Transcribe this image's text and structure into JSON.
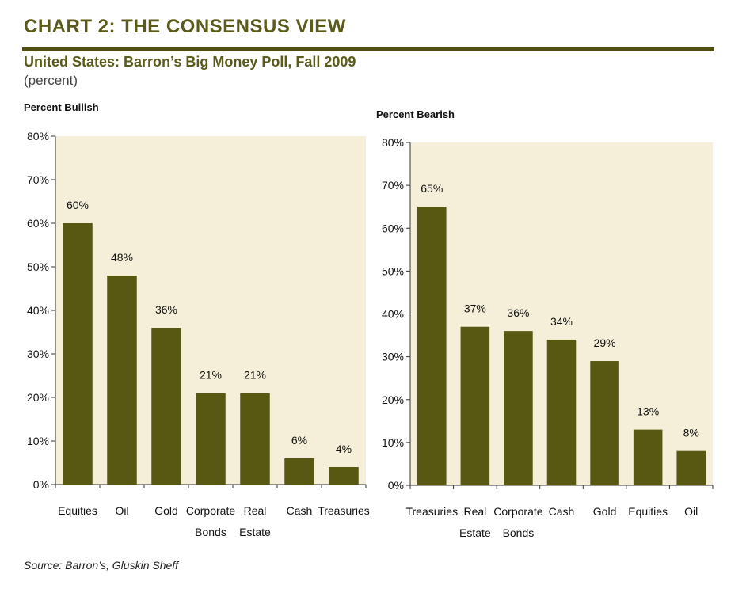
{
  "header": {
    "title": "CHART 2: THE CONSENSUS VIEW",
    "subtitle": "United States: Barron’s Big Money Poll, Fall 2009",
    "units": "(percent)"
  },
  "footer": {
    "source": "Source: Barron’s, Gluskin Sheff"
  },
  "colors": {
    "bar": "#585812",
    "plot_bg": "#f5efd9",
    "title": "#5a5a1a",
    "rule": "#4f4f12"
  },
  "chart_data": [
    {
      "type": "bar",
      "title": "Percent Bullish",
      "categories": [
        [
          "Equities"
        ],
        [
          "Oil"
        ],
        [
          "Gold"
        ],
        [
          "Corporate",
          "Bonds"
        ],
        [
          "Real",
          "Estate"
        ],
        [
          "Cash"
        ],
        [
          "Treasuries"
        ]
      ],
      "values": [
        60,
        48,
        36,
        21,
        21,
        6,
        4
      ],
      "data_labels": [
        "60%",
        "48%",
        "36%",
        "21%",
        "21%",
        "6%",
        "4%"
      ],
      "ylim": [
        0,
        80
      ],
      "yticks": [
        "0%",
        "10%",
        "20%",
        "30%",
        "40%",
        "50%",
        "60%",
        "70%",
        "80%"
      ],
      "xlabel": "",
      "ylabel": ""
    },
    {
      "type": "bar",
      "title": "Percent Bearish",
      "categories": [
        [
          "Treasuries"
        ],
        [
          "Real",
          "Estate"
        ],
        [
          "Corporate",
          "Bonds"
        ],
        [
          "Cash"
        ],
        [
          "Gold"
        ],
        [
          "Equities"
        ],
        [
          "Oil"
        ]
      ],
      "values": [
        65,
        37,
        36,
        34,
        29,
        13,
        8
      ],
      "data_labels": [
        "65%",
        "37%",
        "36%",
        "34%",
        "29%",
        "13%",
        "8%"
      ],
      "ylim": [
        0,
        80
      ],
      "yticks": [
        "0%",
        "10%",
        "20%",
        "30%",
        "40%",
        "50%",
        "60%",
        "70%",
        "80%"
      ],
      "xlabel": "",
      "ylabel": ""
    }
  ]
}
